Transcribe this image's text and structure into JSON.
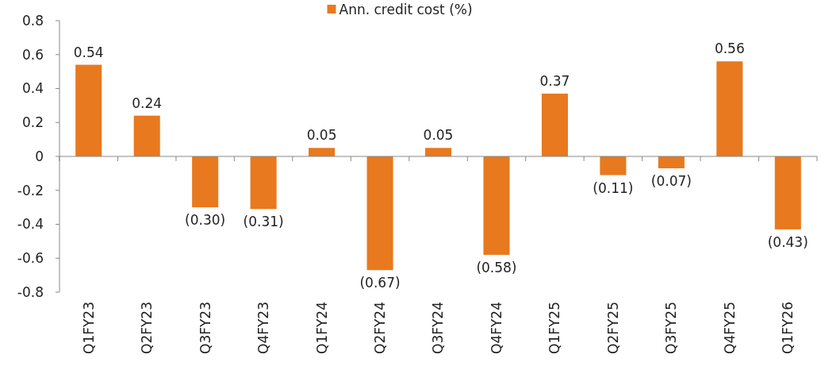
{
  "chart_data": {
    "type": "bar",
    "categories": [
      "Q1FY23",
      "Q2FY23",
      "Q3FY23",
      "Q4FY23",
      "Q1FY24",
      "Q2FY24",
      "Q3FY24",
      "Q4FY24",
      "Q1FY25",
      "Q2FY25",
      "Q3FY25",
      "Q4FY25",
      "Q1FY26"
    ],
    "series": [
      {
        "name": "Ann. credit cost (%)",
        "color": "#e8791e",
        "values": [
          0.54,
          0.24,
          -0.3,
          -0.31,
          0.05,
          -0.67,
          0.05,
          -0.58,
          0.37,
          -0.11,
          -0.07,
          0.56,
          -0.43
        ],
        "value_labels": [
          "0.54",
          "0.24",
          "(0.30)",
          "(0.31)",
          "0.05",
          "(0.67)",
          "0.05",
          "(0.58)",
          "0.37",
          "(0.11)",
          "(0.07)",
          "0.56",
          "(0.43)"
        ]
      }
    ],
    "ylim": [
      -0.8,
      0.8
    ],
    "yticks": [
      -0.8,
      -0.6,
      -0.4,
      -0.2,
      0,
      0.2,
      0.4,
      0.6,
      0.8
    ],
    "legend": "top"
  }
}
